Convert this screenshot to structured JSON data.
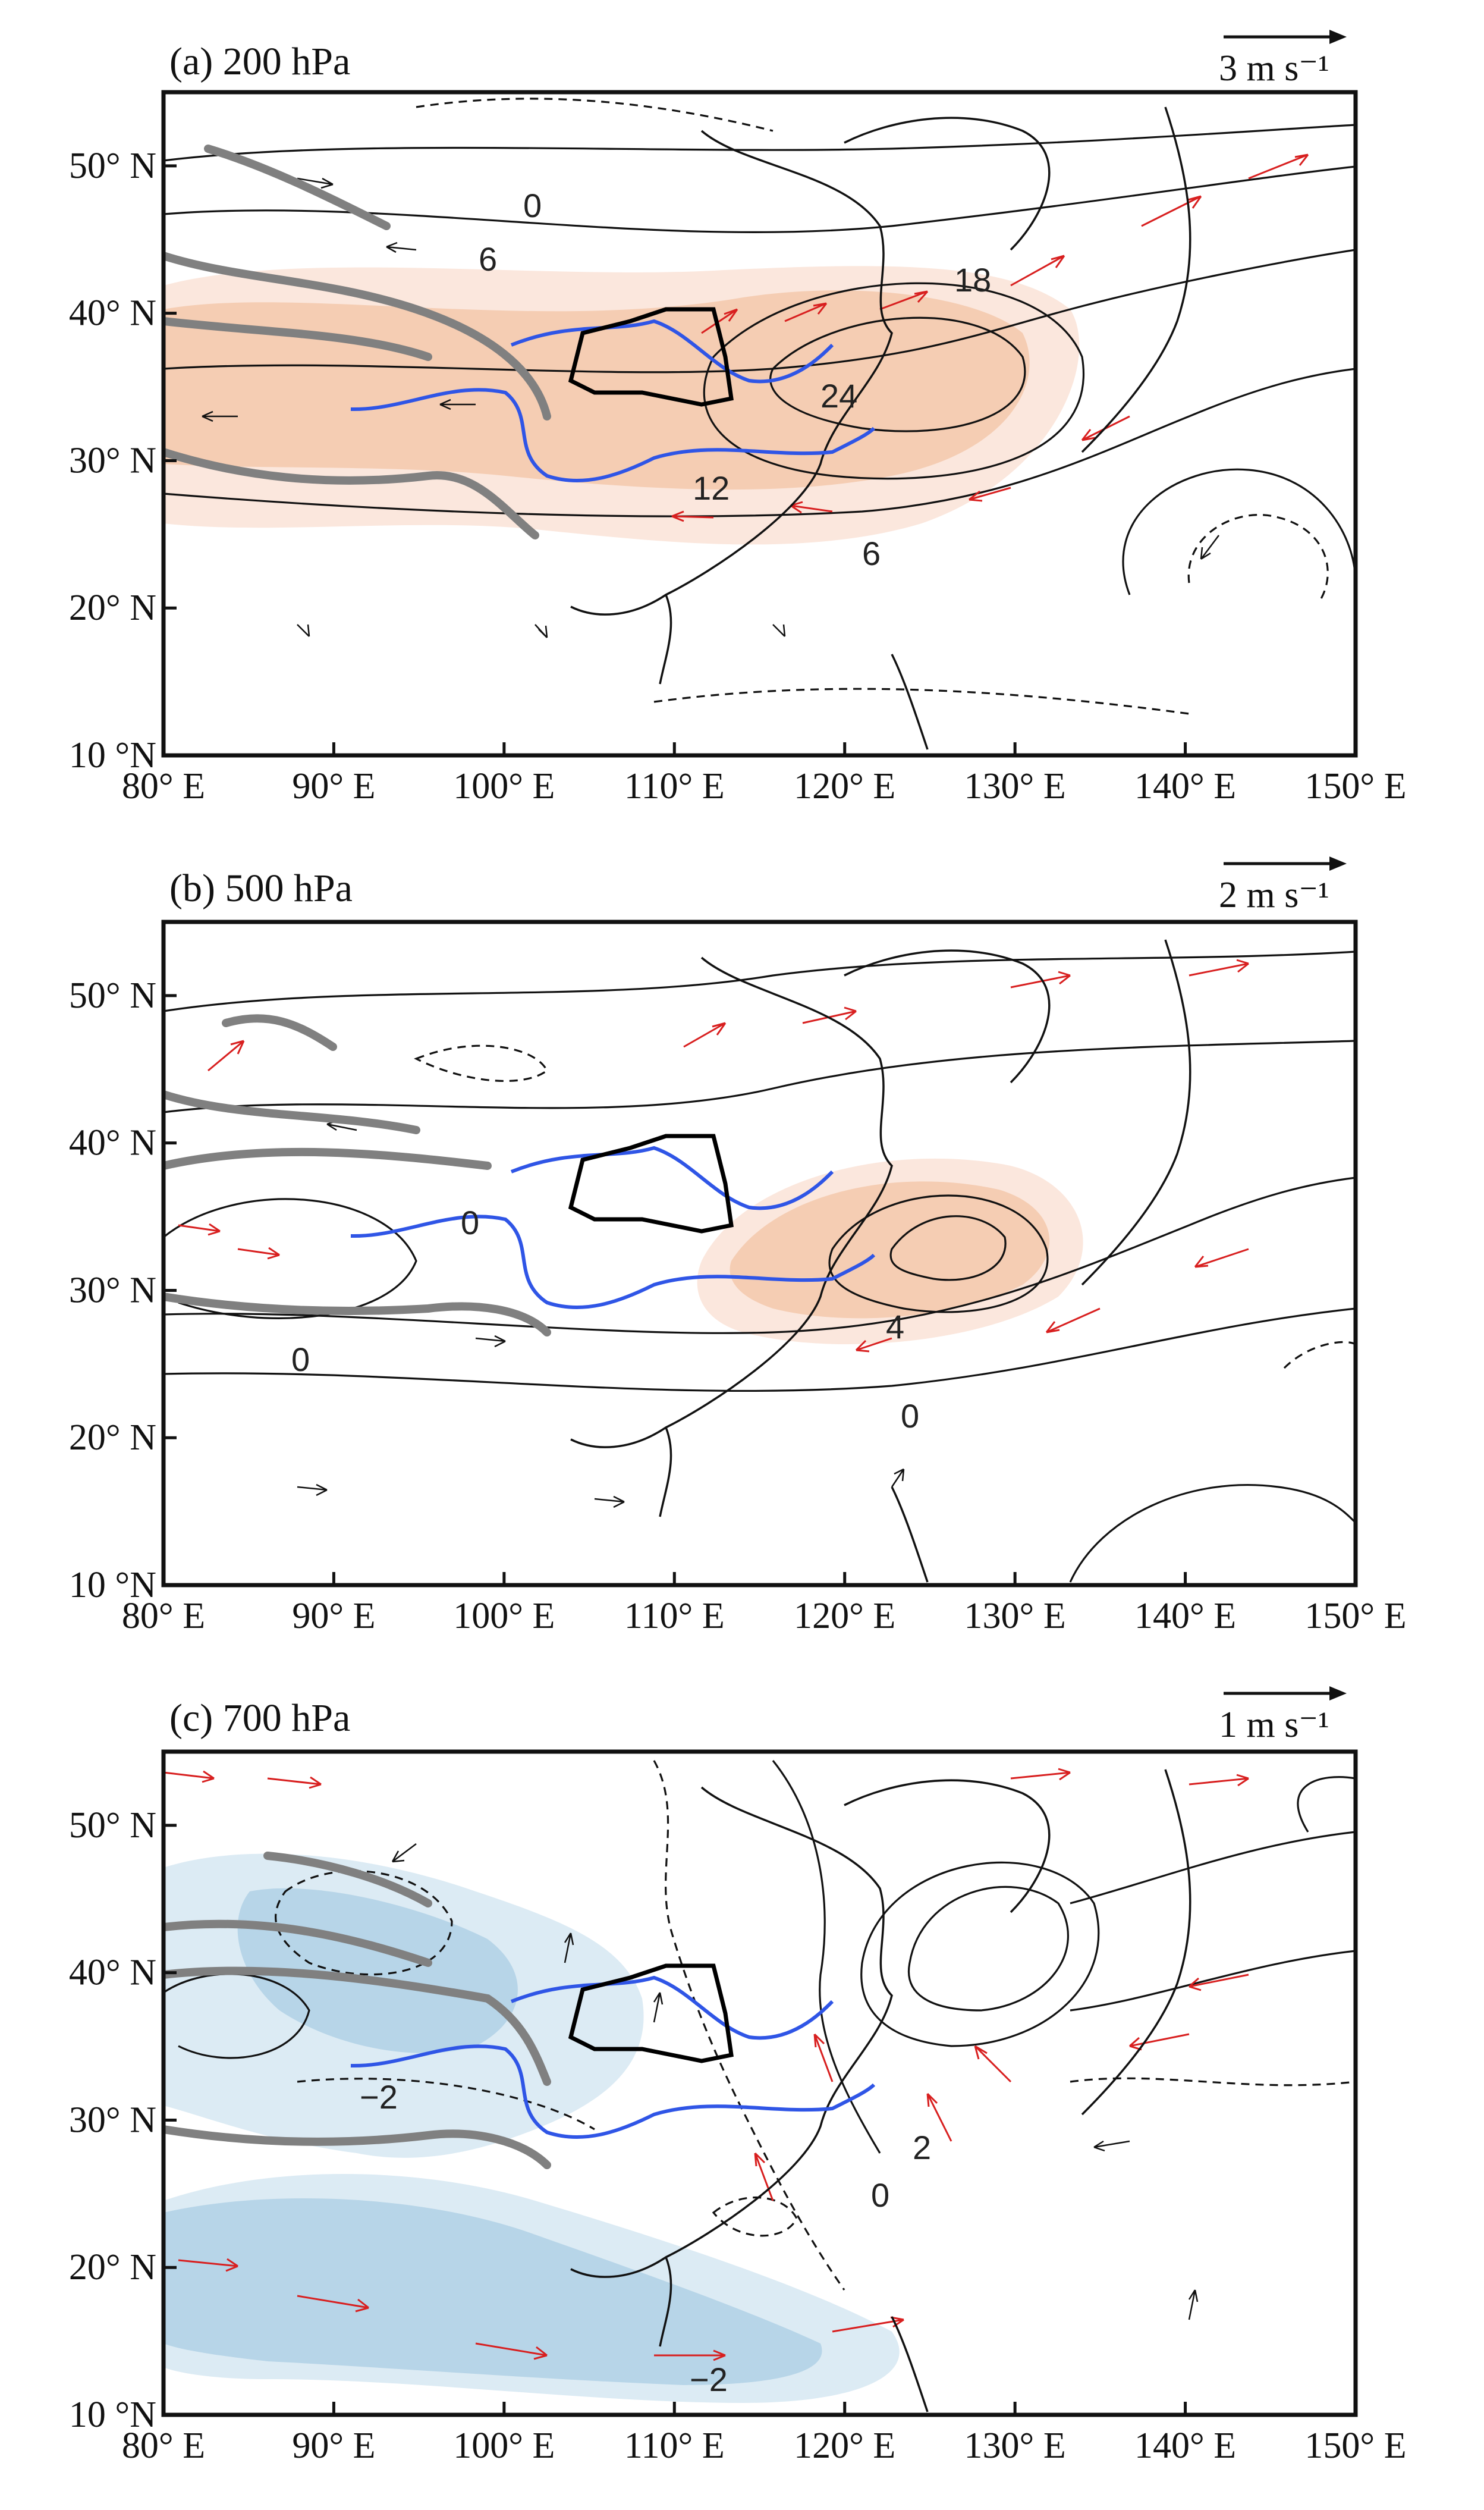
{
  "colors": {
    "positive_shading_light": "#fbe7dd",
    "positive_shading": "#f5cdb3",
    "negative_shading_light": "#dcebf4",
    "negative_shading": "#b7d5e8",
    "arrow_significant": "#d81f1f",
    "arrow_default": "#111111",
    "basin_outline": "#2f55e6",
    "region_outline": "#000000",
    "topography": "#808080"
  },
  "axes": {
    "x_ticks": [
      "80° E",
      "90° E",
      "100° E",
      "110° E",
      "120° E",
      "130° E",
      "140° E",
      "150° E"
    ],
    "y_ticks": [
      "50° N",
      "40° N",
      "30° N",
      "20° N",
      "10 °N"
    ],
    "lon_range": [
      80,
      150
    ],
    "lat_range": [
      10,
      55
    ]
  },
  "panels": [
    {
      "title": "(a) 200 hPa",
      "ref_vector_label": "3 m s⁻¹",
      "contour_labels": [
        "0",
        "6",
        "18",
        "24",
        "12",
        "6"
      ]
    },
    {
      "title": "(b) 500 hPa",
      "ref_vector_label": "2 m s⁻¹",
      "contour_labels": [
        "0",
        "0",
        "4",
        "0"
      ]
    },
    {
      "title": "(c) 700 hPa",
      "ref_vector_label": "1 m s⁻¹",
      "contour_labels": [
        "2",
        "0",
        "−2",
        "−2"
      ]
    }
  ]
}
